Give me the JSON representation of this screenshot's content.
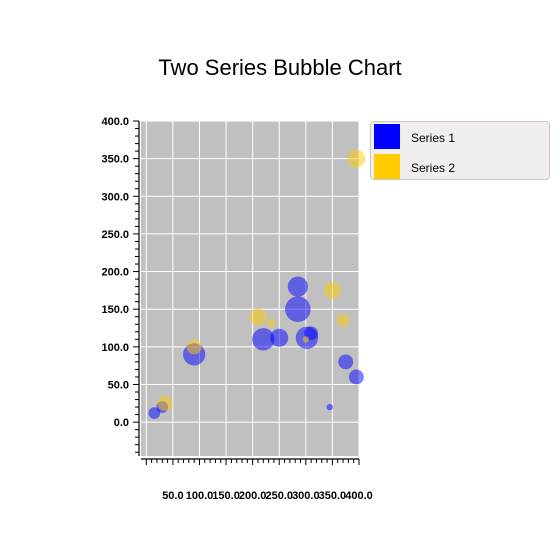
{
  "chart_data": {
    "type": "scatter",
    "subtype": "bubble",
    "title": "Two Series Bubble Chart",
    "xlabel": "",
    "ylabel": "",
    "xlim": [
      -10,
      400
    ],
    "ylim": [
      -45,
      400
    ],
    "x_ticks": [
      {
        "value": 50,
        "label": "50.0"
      },
      {
        "value": 100,
        "label": "100.0"
      },
      {
        "value": 150,
        "label": "150.0"
      },
      {
        "value": 200,
        "label": "200.0"
      },
      {
        "value": 250,
        "label": "250.0"
      },
      {
        "value": 300,
        "label": "300.0"
      },
      {
        "value": 350,
        "label": "350.0"
      },
      {
        "value": 400,
        "label": "400.0"
      }
    ],
    "y_ticks": [
      {
        "value": 0,
        "label": "0.0"
      },
      {
        "value": 50,
        "label": "50.0"
      },
      {
        "value": 100,
        "label": "100.0"
      },
      {
        "value": 150,
        "label": "150.0"
      },
      {
        "value": 200,
        "label": "200.0"
      },
      {
        "value": 250,
        "label": "250.0"
      },
      {
        "value": 300,
        "label": "300.0"
      },
      {
        "value": 350,
        "label": "350.0"
      },
      {
        "value": 400,
        "label": "400.0"
      }
    ],
    "grid": true,
    "legend_position": "right-top",
    "series": [
      {
        "name": "Series 1",
        "color": "#0000ff",
        "points": [
          {
            "x": 15,
            "y": 12,
            "size": 11
          },
          {
            "x": 30,
            "y": 20,
            "size": 11
          },
          {
            "x": 90,
            "y": 90,
            "size": 21
          },
          {
            "x": 220,
            "y": 110,
            "size": 21
          },
          {
            "x": 250,
            "y": 112,
            "size": 17
          },
          {
            "x": 285,
            "y": 180,
            "size": 19
          },
          {
            "x": 285,
            "y": 150,
            "size": 24
          },
          {
            "x": 302,
            "y": 112,
            "size": 21
          },
          {
            "x": 310,
            "y": 118,
            "size": 13
          },
          {
            "x": 345,
            "y": 20,
            "size": 6
          },
          {
            "x": 375,
            "y": 80,
            "size": 14
          },
          {
            "x": 395,
            "y": 60,
            "size": 14
          }
        ]
      },
      {
        "name": "Series 2",
        "color": "#ffcc00",
        "points": [
          {
            "x": 35,
            "y": 25,
            "size": 14
          },
          {
            "x": 90,
            "y": 100,
            "size": 14
          },
          {
            "x": 210,
            "y": 140,
            "size": 16
          },
          {
            "x": 235,
            "y": 132,
            "size": 8
          },
          {
            "x": 300,
            "y": 110,
            "size": 6
          },
          {
            "x": 350,
            "y": 175,
            "size": 16
          },
          {
            "x": 370,
            "y": 135,
            "size": 12
          },
          {
            "x": 395,
            "y": 350,
            "size": 17
          }
        ]
      }
    ]
  },
  "style": {
    "plot_background": "#c0c0c0",
    "grid_color": "#ffffff",
    "bubble_opacity": 0.5,
    "legend_background": "#f2eeee"
  }
}
